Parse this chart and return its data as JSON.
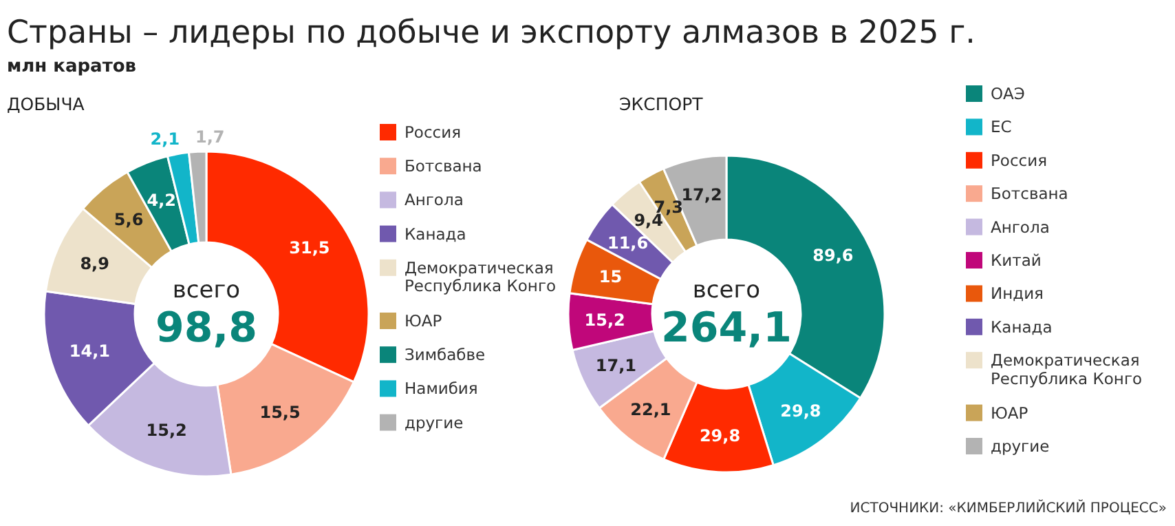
{
  "chart_data": [
    {
      "type": "donut",
      "title": "Страны – лидеры по добыче и экспорту алмазов в 2025 г.",
      "subtitle": "млн каратов",
      "annotations": [
        "ДОБЫЧА",
        "всего",
        "98,8"
      ],
      "categories": [
        "Россия",
        "Ботсвана",
        "Ангола",
        "Канада",
        "Демократическая Республика Конго",
        "ЮАР",
        "Зимбабве",
        "Намибия",
        "другие"
      ],
      "values": [
        31.5,
        15.5,
        15.2,
        14.1,
        8.9,
        5.6,
        4.2,
        2.1,
        1.7
      ],
      "colors": [
        "#ff2a00",
        "#f9a98f",
        "#c5b9e0",
        "#7059ae",
        "#ede2cb",
        "#c9a458",
        "#0a857a",
        "#12b5c9",
        "#b3b3b3"
      ],
      "value_labels": [
        "31,5",
        "15,5",
        "15,2",
        "14,1",
        "8,9",
        "5,6",
        "4,2",
        "2,1",
        "1,7"
      ],
      "legend": "right"
    },
    {
      "type": "donut",
      "annotations": [
        "ЭКСПОРТ",
        "всего",
        "264,1",
        "ИСТОЧНИКИ: «КИМБЕРЛИЙСКИЙ ПРОЦЕСС»"
      ],
      "categories": [
        "ОАЭ",
        "ЕС",
        "Россия",
        "Ботсвана",
        "Ангола",
        "Китай",
        "Индия",
        "Канада",
        "Демократическая Республика Конго",
        "ЮАР",
        "другие"
      ],
      "values": [
        89.6,
        29.8,
        29.8,
        22.1,
        17.1,
        15.2,
        15,
        11.6,
        9.4,
        7.3,
        17.2
      ],
      "colors": [
        "#0a857a",
        "#12b5c9",
        "#ff2a00",
        "#f9a98f",
        "#c5b9e0",
        "#c0077a",
        "#e9580c",
        "#7059ae",
        "#ede2cb",
        "#c9a458",
        "#b3b3b3"
      ],
      "value_labels": [
        "89,6",
        "29,8",
        "29,8",
        "22,1",
        "17,1",
        "15,2",
        "15",
        "11,6",
        "9,4",
        "7,3",
        "17,2"
      ],
      "legend": "right"
    }
  ]
}
